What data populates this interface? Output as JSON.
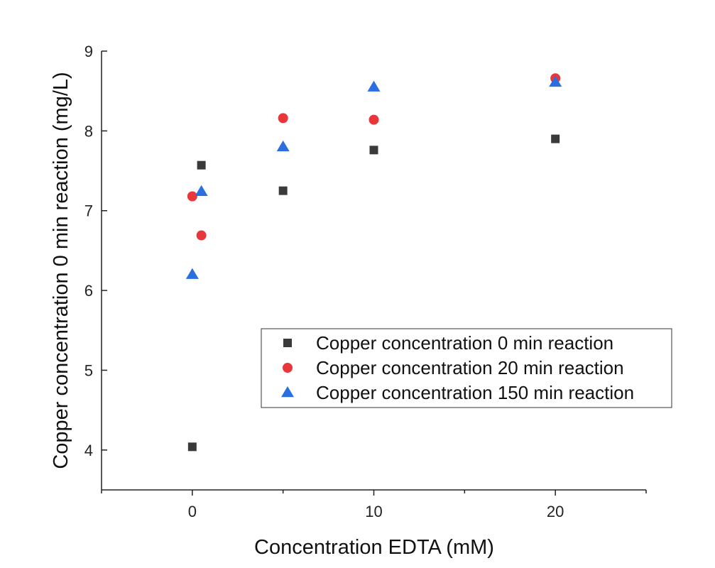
{
  "chart_data": {
    "type": "scatter",
    "xlabel": "Concentration EDTA (mM)",
    "ylabel": "Copper concentration 0 min reaction (mg/L)",
    "xlim": [
      -5,
      25
    ],
    "ylim": [
      3.5,
      9
    ],
    "x_ticks": [
      0,
      10,
      20
    ],
    "x_minor_ticks": [
      -5,
      5,
      15,
      25
    ],
    "y_ticks": [
      4,
      5,
      6,
      7,
      8,
      9
    ],
    "grid": false,
    "legend_position": "center-right",
    "series": [
      {
        "name": "Copper concentration 0 min reaction",
        "marker": "square",
        "color": "#3a3a3a",
        "points": [
          [
            0,
            4.04
          ],
          [
            0.5,
            7.57
          ],
          [
            5,
            7.25
          ],
          [
            10,
            7.76
          ],
          [
            20,
            7.9
          ]
        ]
      },
      {
        "name": "Copper concentration 20 min reaction",
        "marker": "circle",
        "color": "#e8363a",
        "points": [
          [
            0,
            7.18
          ],
          [
            0.5,
            6.69
          ],
          [
            5,
            8.16
          ],
          [
            10,
            8.14
          ],
          [
            20,
            8.66
          ]
        ]
      },
      {
        "name": "Copper concentration 150 min reaction",
        "marker": "triangle",
        "color": "#2a6ee0",
        "points": [
          [
            0,
            6.2
          ],
          [
            0.5,
            7.24
          ],
          [
            5,
            7.8
          ],
          [
            10,
            8.55
          ],
          [
            20,
            8.61
          ]
        ]
      }
    ]
  }
}
